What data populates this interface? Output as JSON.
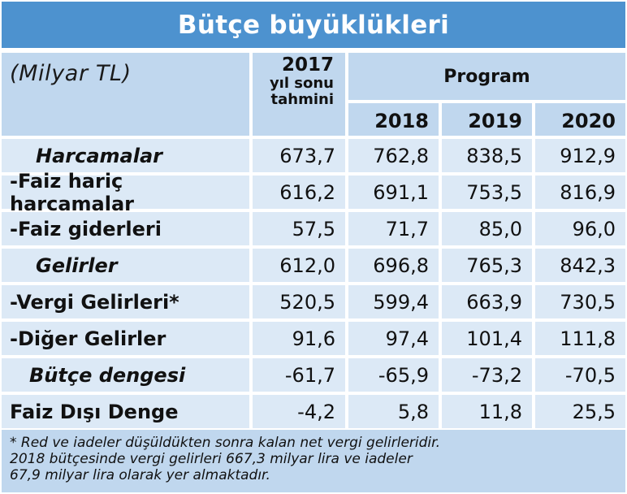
{
  "title": "Bütçe büyüklükleri",
  "header": {
    "unit": "(Milyar TL)",
    "col_2017_year": "2017",
    "col_2017_line1": "yıl sonu",
    "col_2017_line2": "tahmini",
    "program": "Program",
    "years": [
      "2018",
      "2019",
      "2020"
    ]
  },
  "rows": [
    {
      "label": "Harcamalar",
      "values": [
        "673,7",
        "762,8",
        "838,5",
        "912,9"
      ]
    },
    {
      "label": "-Faiz hariç harcamalar",
      "values": [
        "616,2",
        "691,1",
        "753,5",
        "816,9"
      ]
    },
    {
      "label": "-Faiz giderleri",
      "values": [
        "57,5",
        "71,7",
        "85,0",
        "96,0"
      ]
    },
    {
      "label": "Gelirler",
      "values": [
        "612,0",
        "696,8",
        "765,3",
        "842,3"
      ]
    },
    {
      "label": "-Vergi Gelirleri*",
      "values": [
        "520,5",
        "599,4",
        "663,9",
        "730,5"
      ]
    },
    {
      "label": "-Diğer Gelirler",
      "values": [
        "91,6",
        "97,4",
        "101,4",
        "111,8"
      ]
    },
    {
      "label": "Bütçe dengesi",
      "values": [
        "-61,7",
        "-65,9",
        "-73,2",
        "-70,5"
      ]
    },
    {
      "label": "Faiz Dışı Denge",
      "values": [
        "-4,2",
        "5,8",
        "11,8",
        "25,5"
      ]
    }
  ],
  "footnote": [
    "* Red ve iadeler düşüldükten sonra kalan net vergi gelirleridir.",
    "2018 bütçesinde vergi gelirleri 667,3 milyar lira ve iadeler",
    "67,9 milyar lira olarak yer almaktadır."
  ],
  "colors": {
    "title_bar": "#4d92cf",
    "header_fill": "#c0d7ee",
    "cell_fill": "#dce9f6",
    "title_text": "#ffffff"
  }
}
